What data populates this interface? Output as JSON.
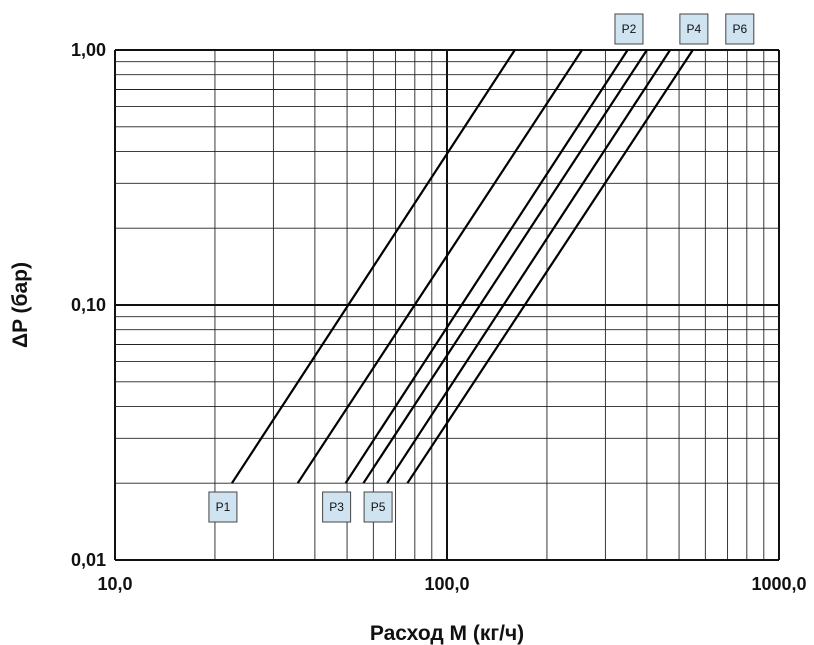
{
  "chart_data": {
    "type": "line",
    "title": "",
    "xlabel": "Расход М (кг/ч)",
    "ylabel": "ΔP  (бар)",
    "x_scale": "log",
    "y_scale": "log",
    "xlim": [
      10,
      1000
    ],
    "ylim": [
      0.01,
      1
    ],
    "x_tick_labels": [
      "10,0",
      "100,0",
      "1000,0"
    ],
    "y_tick_labels": [
      "0,01",
      "0,10",
      "1,00"
    ],
    "grid": true,
    "legend": "none",
    "series": [
      {
        "name": "P1",
        "x": [
          22.5,
          160
        ],
        "y": [
          0.02,
          1.0
        ],
        "tag_position": "bottom"
      },
      {
        "name": "P2",
        "x": [
          35.5,
          255
        ],
        "y": [
          0.02,
          1.0
        ],
        "tag_position": "top"
      },
      {
        "name": "P3",
        "x": [
          49.5,
          350
        ],
        "y": [
          0.02,
          1.0
        ],
        "tag_position": "bottom"
      },
      {
        "name": "P4",
        "x": [
          56,
          400
        ],
        "y": [
          0.02,
          1.0
        ],
        "tag_position": "top"
      },
      {
        "name": "P5",
        "x": [
          66,
          470
        ],
        "y": [
          0.02,
          1.0
        ],
        "tag_position": "bottom"
      },
      {
        "name": "P6",
        "x": [
          76,
          550
        ],
        "y": [
          0.02,
          1.0
        ],
        "tag_position": "top"
      }
    ]
  }
}
